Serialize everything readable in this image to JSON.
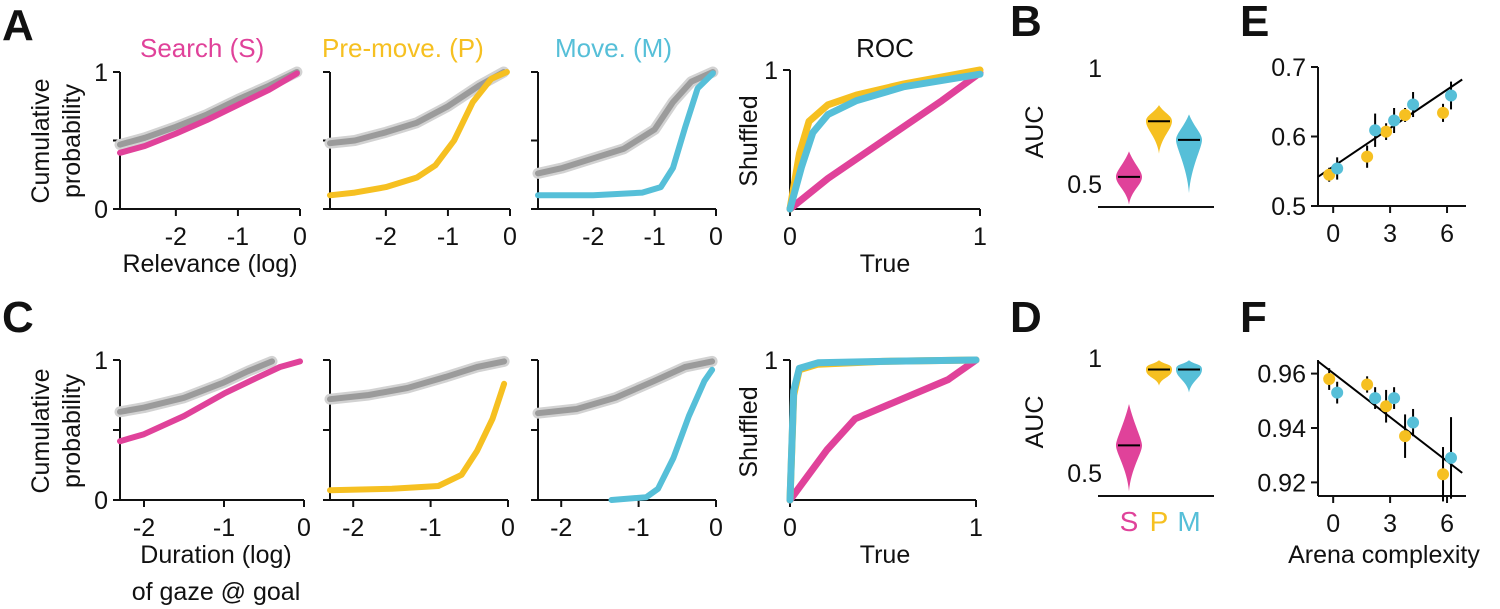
{
  "colors": {
    "search": "#e0429a",
    "premove": "#f6c021",
    "move": "#56bfd8",
    "shuffled": "#9b9b9b",
    "axis": "#111111"
  },
  "panel_labels": [
    "A",
    "B",
    "C",
    "D",
    "E",
    "F"
  ],
  "condition_titles": {
    "search": "Search (S)",
    "premove": "Pre-move. (P)",
    "move": "Move. (M)",
    "roc": "ROC"
  },
  "labels": {
    "cumulative": "Cumulative",
    "probability": "probability",
    "relevance": "Relevance (log)",
    "duration": "Duration (log)",
    "gaze": "of gaze @ goal",
    "shuffled": "Shuffled",
    "true": "True",
    "auc": "AUC",
    "arena_complexity": "Arena complexity",
    "violin_s": "S",
    "violin_p": "P",
    "violin_m": "M"
  },
  "chart_data": [
    {
      "id": "A",
      "type": "line",
      "title": "Search (S) / Pre-move. (P) / Move. (M)",
      "xlabel": "Relevance (log)",
      "ylabel": "Cumulative probability",
      "xlim": [
        -2.9,
        0
      ],
      "ylim": [
        0,
        1
      ],
      "xticks": [
        -2,
        -1,
        0
      ],
      "xtick_labels": [
        "-2",
        "-1",
        "0"
      ],
      "yticks": [
        0,
        0.5,
        1
      ],
      "ytick_labels": [
        "0",
        "",
        "1"
      ],
      "subplots": [
        {
          "name": "search",
          "series": [
            {
              "name": "Shuffled",
              "x": [
                -2.9,
                -2.5,
                -2.0,
                -1.5,
                -1.0,
                -0.5,
                -0.05
              ],
              "y": [
                0.47,
                0.52,
                0.6,
                0.69,
                0.8,
                0.9,
                1.0
              ]
            },
            {
              "name": "Search (S)",
              "x": [
                -2.9,
                -2.5,
                -2.0,
                -1.5,
                -1.0,
                -0.5,
                -0.05
              ],
              "y": [
                0.41,
                0.46,
                0.55,
                0.65,
                0.76,
                0.87,
                0.99
              ]
            }
          ]
        },
        {
          "name": "premove",
          "series": [
            {
              "name": "Shuffled",
              "x": [
                -2.9,
                -2.5,
                -2.0,
                -1.5,
                -1.0,
                -0.5,
                -0.1
              ],
              "y": [
                0.48,
                0.5,
                0.56,
                0.63,
                0.75,
                0.9,
                1.0
              ]
            },
            {
              "name": "Pre-move. (P)",
              "x": [
                -2.9,
                -2.5,
                -2.0,
                -1.5,
                -1.2,
                -0.9,
                -0.6,
                -0.3,
                -0.05
              ],
              "y": [
                0.1,
                0.12,
                0.16,
                0.23,
                0.32,
                0.5,
                0.78,
                0.95,
                1.0
              ]
            }
          ]
        },
        {
          "name": "move",
          "series": [
            {
              "name": "Shuffled",
              "x": [
                -2.9,
                -2.5,
                -2.0,
                -1.5,
                -1.0,
                -0.7,
                -0.4,
                -0.05
              ],
              "y": [
                0.26,
                0.3,
                0.37,
                0.44,
                0.58,
                0.78,
                0.93,
                1.0
              ]
            },
            {
              "name": "Move. (M)",
              "x": [
                -2.9,
                -2.0,
                -1.2,
                -0.9,
                -0.7,
                -0.5,
                -0.3,
                -0.05
              ],
              "y": [
                0.1,
                0.1,
                0.12,
                0.16,
                0.3,
                0.6,
                0.88,
                0.99
              ]
            }
          ]
        }
      ]
    },
    {
      "id": "A-ROC",
      "type": "line",
      "title": "ROC",
      "xlabel": "True",
      "ylabel": "Shuffled",
      "xlim": [
        0,
        1
      ],
      "ylim": [
        0,
        1
      ],
      "xticks": [
        0,
        1
      ],
      "xtick_labels": [
        "0",
        "1"
      ],
      "yticks": [
        1
      ],
      "ytick_labels": [
        "1"
      ],
      "series": [
        {
          "name": "Search (S)",
          "x": [
            0,
            0.2,
            0.5,
            0.8,
            1.0
          ],
          "y": [
            0,
            0.22,
            0.5,
            0.78,
            0.98
          ]
        },
        {
          "name": "Pre-move. (P)",
          "x": [
            0,
            0.05,
            0.1,
            0.2,
            0.35,
            0.6,
            1.0
          ],
          "y": [
            0,
            0.4,
            0.63,
            0.75,
            0.82,
            0.9,
            1.0
          ]
        },
        {
          "name": "Move. (M)",
          "x": [
            0,
            0.06,
            0.12,
            0.2,
            0.35,
            0.6,
            1.0
          ],
          "y": [
            0,
            0.3,
            0.55,
            0.68,
            0.78,
            0.88,
            0.97
          ]
        }
      ]
    },
    {
      "id": "B",
      "type": "violin",
      "ylabel": "AUC",
      "ylim": [
        0.4,
        1
      ],
      "yticks": [
        0.5,
        1
      ],
      "ytick_labels": [
        "0.5",
        "1"
      ],
      "categories": [
        "S",
        "P",
        "M"
      ],
      "medians": [
        0.53,
        0.77,
        0.69
      ],
      "ranges": [
        [
          0.41,
          0.64
        ],
        [
          0.63,
          0.84
        ],
        [
          0.46,
          0.8
        ]
      ]
    },
    {
      "id": "E",
      "type": "scatter",
      "xlabel": "",
      "ylabel": "",
      "xlim": [
        -0.8,
        7
      ],
      "ylim": [
        0.5,
        0.7
      ],
      "xticks": [
        0,
        3,
        6
      ],
      "xtick_labels": [
        "0",
        "3",
        "6"
      ],
      "yticks": [
        0.5,
        0.6,
        0.7
      ],
      "ytick_labels": [
        "0.5",
        "0.6",
        "0.7"
      ],
      "fit_line": {
        "x": [
          -0.8,
          6.8
        ],
        "y": [
          0.542,
          0.682
        ]
      },
      "series": [
        {
          "name": "Pre-move. (P)",
          "x": [
            0,
            2,
            3,
            4,
            6
          ],
          "y": [
            0.545,
            0.571,
            0.607,
            0.631,
            0.634
          ],
          "err": [
            0.01,
            0.016,
            0.012,
            0.01,
            0.013
          ]
        },
        {
          "name": "Move. (M)",
          "x": [
            0,
            2,
            3,
            4,
            6
          ],
          "y": [
            0.554,
            0.609,
            0.623,
            0.646,
            0.659
          ],
          "err": [
            0.016,
            0.024,
            0.018,
            0.018,
            0.02
          ]
        }
      ]
    },
    {
      "id": "C",
      "type": "line",
      "xlabel": "Duration (log) of gaze @ goal",
      "ylabel": "Cumulative probability",
      "xlim": [
        -2.3,
        0
      ],
      "ylim": [
        0,
        1
      ],
      "xticks": [
        -2,
        -1,
        0
      ],
      "xtick_labels": [
        "-2",
        "-1",
        "0"
      ],
      "yticks": [
        0,
        0.5,
        1
      ],
      "ytick_labels": [
        "0",
        "",
        "1"
      ],
      "subplots": [
        {
          "name": "search",
          "series": [
            {
              "name": "Shuffled",
              "x": [
                -2.3,
                -2.0,
                -1.5,
                -1.0,
                -0.7,
                -0.4
              ],
              "y": [
                0.63,
                0.66,
                0.73,
                0.84,
                0.92,
                0.99
              ]
            },
            {
              "name": "Search (S)",
              "x": [
                -2.3,
                -2.0,
                -1.5,
                -1.0,
                -0.6,
                -0.3,
                -0.05
              ],
              "y": [
                0.42,
                0.47,
                0.6,
                0.76,
                0.87,
                0.95,
                0.99
              ]
            }
          ]
        },
        {
          "name": "premove",
          "series": [
            {
              "name": "Shuffled",
              "x": [
                -2.3,
                -1.8,
                -1.3,
                -0.8,
                -0.4,
                -0.05
              ],
              "y": [
                0.72,
                0.75,
                0.8,
                0.88,
                0.95,
                0.99
              ]
            },
            {
              "name": "Pre-move. (P)",
              "x": [
                -2.3,
                -1.5,
                -0.9,
                -0.6,
                -0.4,
                -0.2,
                -0.05
              ],
              "y": [
                0.07,
                0.08,
                0.1,
                0.18,
                0.35,
                0.58,
                0.83
              ]
            }
          ]
        },
        {
          "name": "move",
          "series": [
            {
              "name": "Shuffled",
              "x": [
                -2.3,
                -1.8,
                -1.3,
                -0.8,
                -0.4,
                -0.05
              ],
              "y": [
                0.62,
                0.65,
                0.73,
                0.85,
                0.95,
                0.99
              ]
            },
            {
              "name": "Move. (M)",
              "x": [
                -1.35,
                -0.9,
                -0.75,
                -0.55,
                -0.35,
                -0.15,
                -0.05
              ],
              "y": [
                0.0,
                0.02,
                0.08,
                0.3,
                0.6,
                0.85,
                0.93
              ]
            }
          ]
        }
      ]
    },
    {
      "id": "C-ROC",
      "type": "line",
      "xlabel": "True",
      "ylabel": "Shuffled",
      "xlim": [
        0,
        1
      ],
      "ylim": [
        0,
        1
      ],
      "xticks": [
        0,
        1
      ],
      "xtick_labels": [
        "0",
        "1"
      ],
      "yticks": [
        1
      ],
      "ytick_labels": [
        "1"
      ],
      "series": [
        {
          "name": "Search (S)",
          "x": [
            0,
            0.2,
            0.35,
            0.6,
            0.85,
            1.0
          ],
          "y": [
            0,
            0.36,
            0.58,
            0.72,
            0.86,
            1.0
          ]
        },
        {
          "name": "Pre-move. (P)",
          "x": [
            0,
            0.02,
            0.05,
            0.15,
            0.5,
            1.0
          ],
          "y": [
            0,
            0.75,
            0.93,
            0.97,
            0.99,
            1.0
          ]
        },
        {
          "name": "Move. (M)",
          "x": [
            0,
            0.02,
            0.05,
            0.15,
            0.5,
            1.0
          ],
          "y": [
            0,
            0.78,
            0.94,
            0.98,
            0.99,
            1.0
          ]
        }
      ]
    },
    {
      "id": "D",
      "type": "violin",
      "ylabel": "AUC",
      "ylim": [
        0.4,
        1
      ],
      "yticks": [
        0.5,
        1
      ],
      "ytick_labels": [
        "0.5",
        "1"
      ],
      "categories": [
        "S",
        "P",
        "M"
      ],
      "medians": [
        0.62,
        0.95,
        0.95
      ],
      "ranges": [
        [
          0.42,
          0.8
        ],
        [
          0.88,
          0.99
        ],
        [
          0.85,
          0.99
        ]
      ]
    },
    {
      "id": "F",
      "type": "scatter",
      "xlabel": "Arena complexity",
      "ylabel": "",
      "xlim": [
        -0.8,
        7
      ],
      "ylim": [
        0.915,
        0.965
      ],
      "xticks": [
        0,
        3,
        6
      ],
      "xtick_labels": [
        "0",
        "3",
        "6"
      ],
      "yticks": [
        0.92,
        0.94,
        0.96
      ],
      "ytick_labels": [
        "0.92",
        "0.94",
        "0.96"
      ],
      "fit_line": {
        "x": [
          -0.8,
          6.8
        ],
        "y": [
          0.9645,
          0.9235
        ]
      },
      "series": [
        {
          "name": "Pre-move. (P)",
          "x": [
            0,
            2,
            3,
            4,
            6
          ],
          "y": [
            0.958,
            0.956,
            0.948,
            0.937,
            0.923
          ],
          "err": [
            0.004,
            0.003,
            0.006,
            0.008,
            0.01
          ]
        },
        {
          "name": "Move. (M)",
          "x": [
            0,
            2,
            3,
            4,
            6
          ],
          "y": [
            0.953,
            0.951,
            0.951,
            0.942,
            0.929
          ],
          "err": [
            0.004,
            0.004,
            0.004,
            0.005,
            0.015
          ]
        }
      ]
    }
  ]
}
